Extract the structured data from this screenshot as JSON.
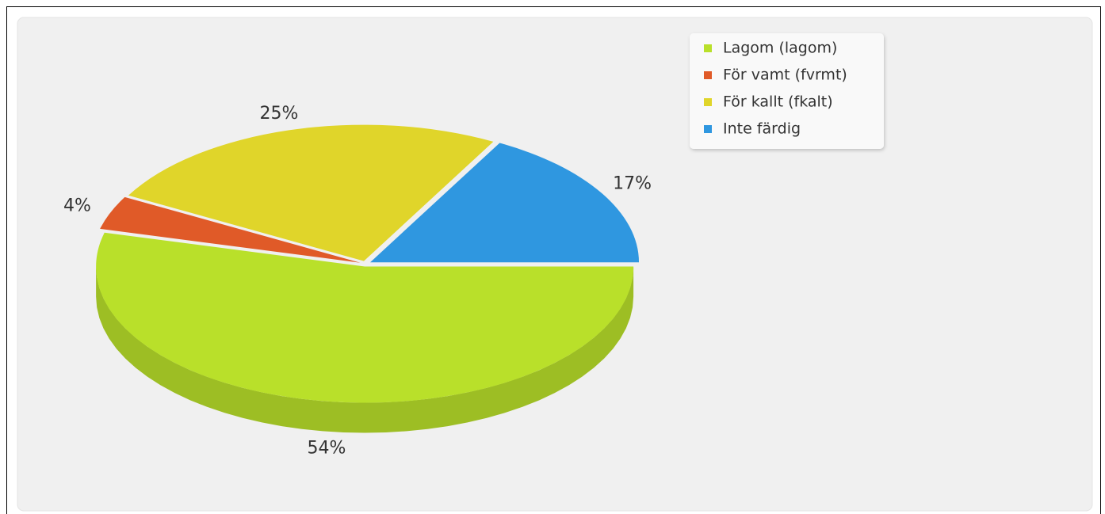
{
  "chart_data": {
    "type": "pie",
    "categories": [
      "Lagom (lagom)",
      "För vamt (fvrmt)",
      "För kallt (fkalt)",
      "Inte färdig"
    ],
    "values": [
      54,
      4,
      25,
      17
    ],
    "value_labels": [
      "54%",
      "4%",
      "25%",
      "17%"
    ],
    "colors": [
      "#b9e02a",
      "#e05a28",
      "#e0d52a",
      "#2f97e0"
    ],
    "legend": "top-right"
  }
}
